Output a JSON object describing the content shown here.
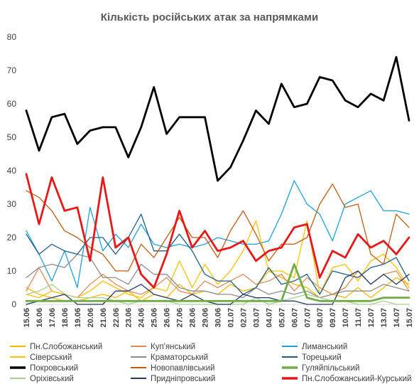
{
  "chart_data": {
    "type": "line",
    "title": "Кількість російських атак за напрямками",
    "xlabel": "",
    "ylabel": "",
    "ylim": [
      0,
      80
    ],
    "yticks": [
      0,
      10,
      20,
      30,
      40,
      50,
      60,
      70,
      80
    ],
    "grid": false,
    "legend": "bottom",
    "categories": [
      "15.06",
      "16.06",
      "17.06",
      "18.06",
      "19.06",
      "20.06",
      "21.06",
      "22.06",
      "23.06",
      "24.06",
      "25.06",
      "26.06",
      "27.06",
      "28.06",
      "29.06",
      "30.06",
      "01.07",
      "02.07",
      "03.07",
      "04.07",
      "05.07",
      "06.07",
      "07.07",
      "08.07",
      "09.07",
      "10.07",
      "11.07",
      "12.07",
      "13.07",
      "14.07",
      "15.07"
    ],
    "series": [
      {
        "name": "Пн.Слобожанський",
        "color": "#F5B800",
        "width": 1.3,
        "values": [
          5,
          3,
          2,
          1,
          1,
          2,
          3,
          2,
          4,
          1,
          3,
          2,
          6,
          3,
          4,
          3,
          6,
          4,
          5,
          10,
          8,
          6,
          5,
          2,
          3,
          2,
          5,
          2,
          5,
          8,
          6
        ]
      },
      {
        "name": "Куп'янський",
        "color": "#E08A5A",
        "width": 1.3,
        "values": [
          4,
          11,
          4,
          3,
          2,
          6,
          9,
          6,
          4,
          3,
          5,
          8,
          4,
          3,
          7,
          5,
          7,
          9,
          6,
          7,
          9,
          4,
          8,
          5,
          3,
          5,
          10,
          6,
          9,
          10,
          4
        ]
      },
      {
        "name": "Лиманський",
        "color": "#1BA1E2",
        "width": 1.3,
        "values": [
          22,
          15,
          7,
          16,
          5,
          29,
          16,
          21,
          17,
          24,
          18,
          17,
          18,
          17,
          18,
          20,
          19,
          18,
          18,
          19,
          27,
          37,
          30,
          27,
          19,
          30,
          32,
          34,
          28,
          28,
          27
        ]
      },
      {
        "name": "Сіверський",
        "color": "#FFC000",
        "width": 1.3,
        "values": [
          3,
          2,
          4,
          3,
          2,
          4,
          7,
          5,
          3,
          2,
          5,
          4,
          13,
          5,
          12,
          6,
          10,
          16,
          25,
          10,
          10,
          8,
          25,
          3,
          11,
          12,
          7,
          13,
          15,
          11,
          5
        ]
      },
      {
        "name": "Краматорський",
        "color": "#8C8C8C",
        "width": 1.3,
        "values": [
          8,
          11,
          12,
          11,
          15,
          14,
          8,
          8,
          6,
          12,
          9,
          9,
          5,
          4,
          4,
          3,
          3,
          2,
          5,
          3,
          4,
          3,
          4,
          2,
          3,
          4,
          4,
          4,
          6,
          5,
          4
        ]
      },
      {
        "name": "Торецький",
        "color": "#1F5C8B",
        "width": 1.3,
        "values": [
          21,
          15,
          18,
          16,
          15,
          20,
          20,
          15,
          20,
          27,
          16,
          16,
          21,
          16,
          9,
          7,
          7,
          3,
          5,
          11,
          6,
          7,
          9,
          3,
          10,
          9,
          8,
          11,
          12,
          14,
          7
        ]
      },
      {
        "name": "Покровський",
        "color": "#000000",
        "width": 2.8,
        "values": [
          58,
          46,
          56,
          57,
          48,
          52,
          53,
          53,
          44,
          53,
          65,
          51,
          56,
          56,
          56,
          37,
          41,
          49,
          58,
          54,
          66,
          59,
          60,
          68,
          67,
          61,
          59,
          63,
          61,
          74,
          55
        ]
      },
      {
        "name": "Новопавлівський",
        "color": "#C55A11",
        "width": 1.3,
        "values": [
          34,
          32,
          28,
          22,
          20,
          17,
          15,
          10,
          10,
          18,
          14,
          20,
          26,
          20,
          20,
          14,
          22,
          28,
          21,
          13,
          18,
          18,
          20,
          30,
          36,
          29,
          30,
          15,
          12,
          27,
          23
        ]
      },
      {
        "name": "Гуляйпільський",
        "color": "#70AD47",
        "width": 2.8,
        "values": [
          1,
          1,
          1,
          1,
          1,
          1,
          1,
          1,
          1,
          1,
          1,
          1,
          1,
          1,
          1,
          1,
          1,
          1,
          1,
          1,
          1,
          12,
          2,
          1,
          1,
          1,
          1,
          1,
          2,
          2,
          2
        ]
      },
      {
        "name": "Оріхівський",
        "color": "#A9D18E",
        "width": 1.3,
        "values": [
          3,
          4,
          6,
          3,
          2,
          2,
          2,
          1,
          0,
          1,
          1,
          1,
          0,
          0,
          0,
          0,
          0,
          0,
          2,
          0,
          1,
          2,
          3,
          2,
          1,
          1,
          0,
          0,
          1,
          0,
          0
        ]
      },
      {
        "name": "Придніпровський",
        "color": "#203864",
        "width": 1.3,
        "values": [
          0,
          1,
          2,
          3,
          0,
          0,
          0,
          4,
          4,
          6,
          3,
          2,
          1,
          3,
          1,
          0,
          0,
          3,
          2,
          2,
          1,
          1,
          0,
          0,
          0,
          8,
          10,
          6,
          9,
          6,
          9
        ]
      },
      {
        "name": "Пн.Слобожанський-Курський",
        "color": "#E61919",
        "width": 2.8,
        "values": [
          39,
          24,
          38,
          28,
          29,
          13,
          38,
          17,
          20,
          9,
          5,
          15,
          28,
          17,
          22,
          16,
          17,
          19,
          13,
          16,
          17,
          23,
          24,
          8,
          16,
          14,
          21,
          17,
          19,
          15,
          20
        ]
      }
    ]
  }
}
